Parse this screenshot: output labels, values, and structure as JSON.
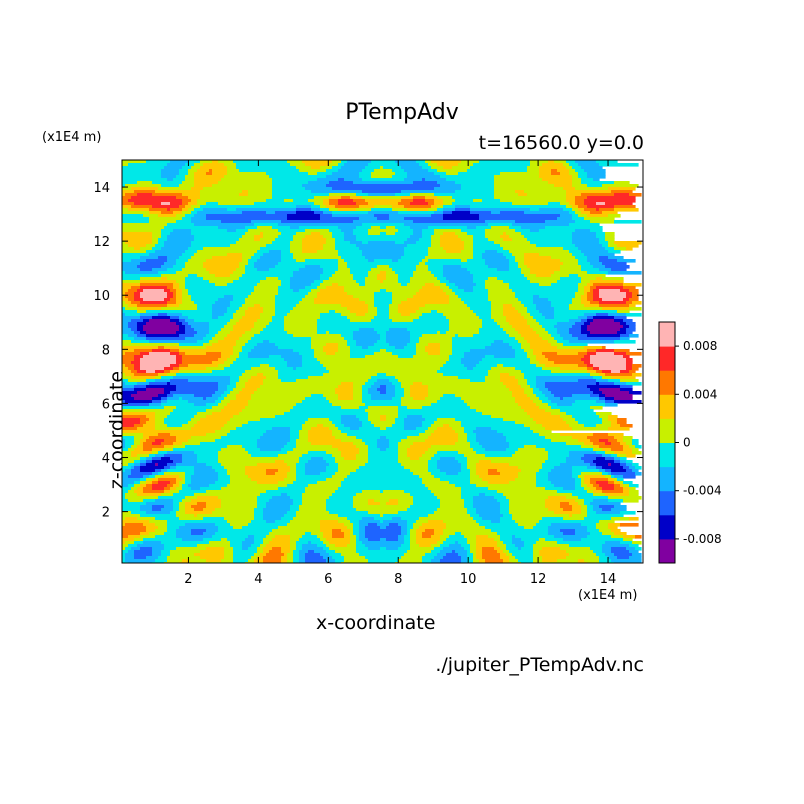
{
  "chart_data": {
    "type": "heatmap",
    "title": "PTempAdv",
    "subtitle": "t=16560.0 y=0.0",
    "xlabel": "x-coordinate",
    "ylabel": "z-coordinate",
    "x_unit": "(x1E4 m)",
    "z_unit": "(x1E4 m)",
    "xlim": [
      0.1,
      15.0
    ],
    "ylim": [
      0.1,
      15.0
    ],
    "x_ticks": [
      "2",
      "4",
      "6",
      "8",
      "10",
      "12",
      "14"
    ],
    "y_ticks": [
      "2",
      "4",
      "6",
      "8",
      "10",
      "12",
      "14"
    ],
    "colorbar": {
      "tick_labels": [
        "0.008",
        "0.004",
        "0",
        "-0.004",
        "-0.008"
      ],
      "levels": [
        -0.01,
        -0.008,
        -0.006,
        -0.004,
        -0.002,
        0,
        0.002,
        0.004,
        0.006,
        0.008,
        0.01
      ],
      "colors": [
        "#8000a0",
        "#0000c8",
        "#1e64ff",
        "#14b4ff",
        "#00e8e8",
        "#c8f000",
        "#ffc800",
        "#ff7800",
        "#ff2828",
        "#ffb4b4"
      ]
    },
    "source_file": "./jupiter_PTempAdv.nc"
  }
}
